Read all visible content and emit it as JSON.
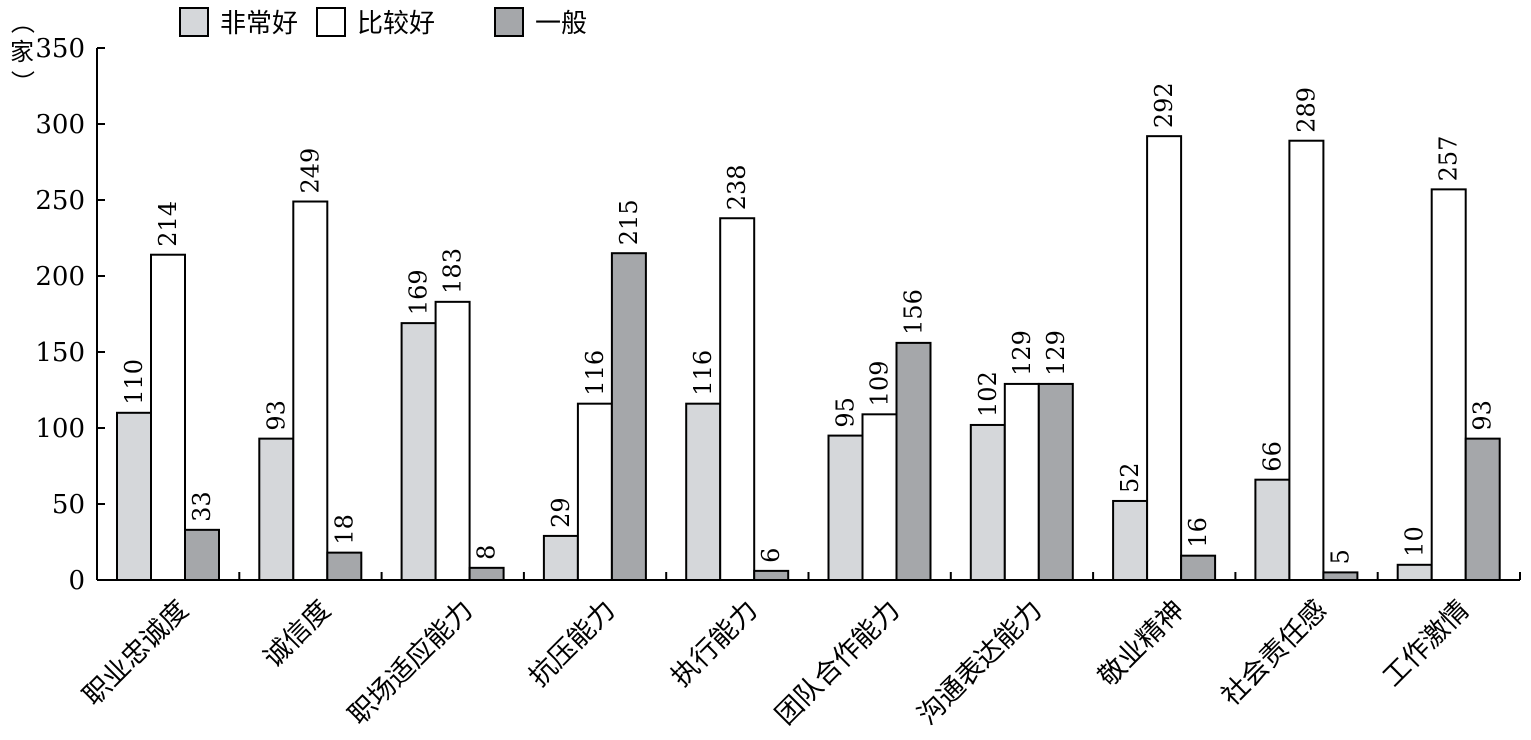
{
  "chart_data": {
    "type": "bar",
    "ylabel": "（家）",
    "ylim": [
      0,
      350
    ],
    "yticks": [
      0,
      50,
      100,
      150,
      200,
      250,
      300,
      350
    ],
    "grid": false,
    "legend_position": "top-left",
    "categories": [
      "职业忠诚度",
      "诚信度",
      "职场适应能力",
      "抗压能力",
      "执行能力",
      "团队合作能力",
      "沟通表达能力",
      "敬业精神",
      "社会责任感",
      "工作激情"
    ],
    "series": [
      {
        "name": "非常好",
        "color": "#d5d7da",
        "values": [
          110,
          93,
          169,
          29,
          116,
          95,
          102,
          52,
          66,
          10
        ]
      },
      {
        "name": "比较好",
        "color": "#ffffff",
        "values": [
          214,
          249,
          183,
          116,
          238,
          109,
          129,
          292,
          289,
          257
        ]
      },
      {
        "name": "一般",
        "color": "#a5a7aa",
        "values": [
          33,
          18,
          8,
          215,
          6,
          156,
          129,
          16,
          5,
          93
        ]
      }
    ]
  }
}
